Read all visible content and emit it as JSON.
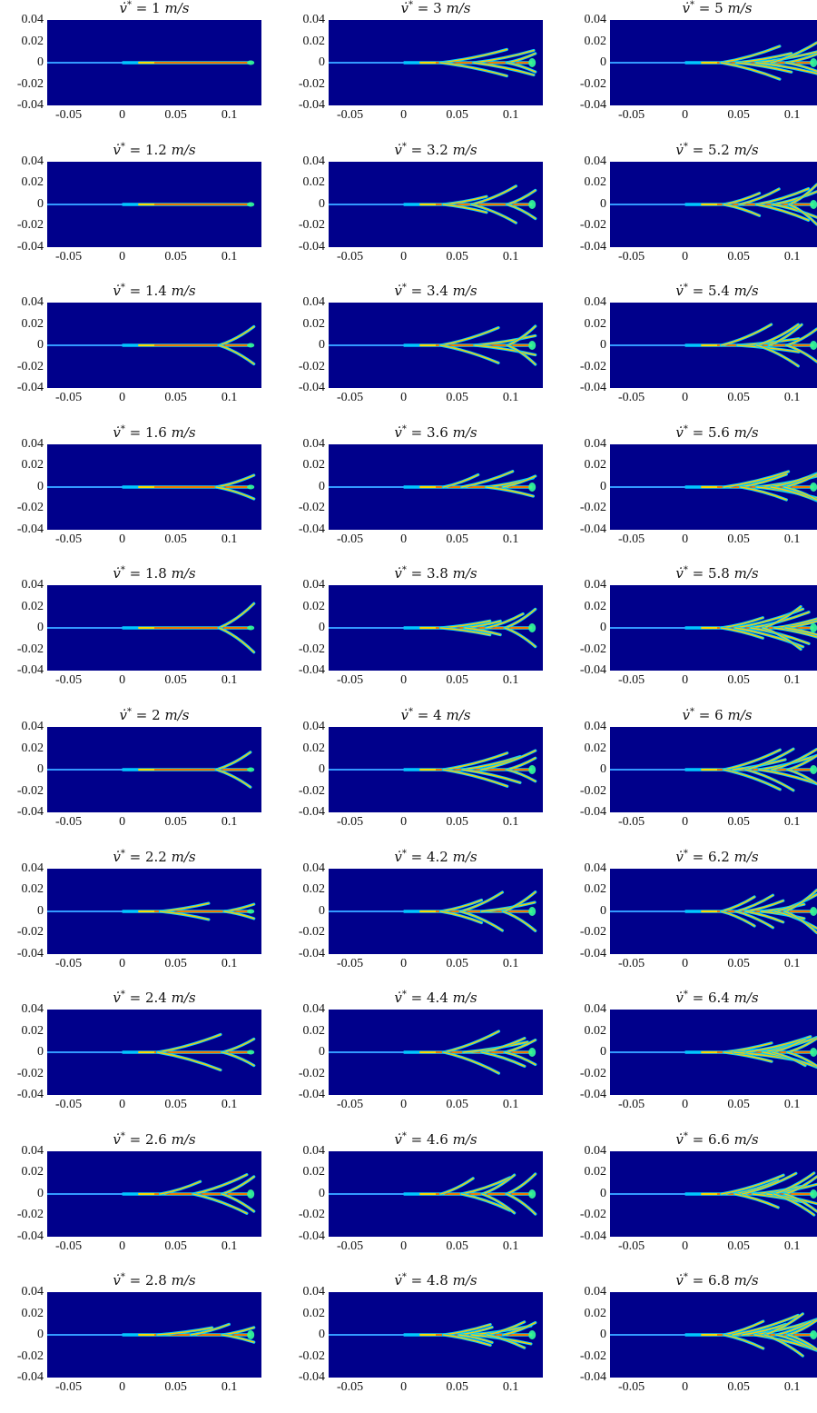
{
  "chart_data": {
    "type": "heatmap",
    "layout": "10 rows x 3 columns small multiples",
    "description_text_units": "m/s",
    "colormap": "jet",
    "background_color": "#00008b",
    "xlim": [
      -0.07,
      0.13
    ],
    "ylim": [
      -0.04,
      0.04
    ],
    "xticks": [
      -0.05,
      0,
      0.05,
      0.1
    ],
    "xtick_labels": [
      "-0.05",
      "0",
      "0.05",
      "0.1"
    ],
    "yticks": [
      0.04,
      0.02,
      0,
      -0.02,
      -0.04
    ],
    "ytick_labels": [
      "0.04",
      "0.02",
      "0",
      "-0.02",
      "-0.04"
    ],
    "panels": [
      {
        "velocity": "1",
        "branches": 0
      },
      {
        "velocity": "3",
        "branches": 3
      },
      {
        "velocity": "5",
        "branches": 5
      },
      {
        "velocity": "1.2",
        "branches": 0
      },
      {
        "velocity": "3.2",
        "branches": 3
      },
      {
        "velocity": "5.2",
        "branches": 5
      },
      {
        "velocity": "1.4",
        "branches": 1
      },
      {
        "velocity": "3.4",
        "branches": 3
      },
      {
        "velocity": "5.4",
        "branches": 5
      },
      {
        "velocity": "1.6",
        "branches": 1
      },
      {
        "velocity": "3.6",
        "branches": 4
      },
      {
        "velocity": "5.6",
        "branches": 5
      },
      {
        "velocity": "1.8",
        "branches": 1
      },
      {
        "velocity": "3.8",
        "branches": 4
      },
      {
        "velocity": "5.8",
        "branches": 6
      },
      {
        "velocity": "2",
        "branches": 1
      },
      {
        "velocity": "4",
        "branches": 4
      },
      {
        "velocity": "6",
        "branches": 6
      },
      {
        "velocity": "2.2",
        "branches": 2
      },
      {
        "velocity": "4.2",
        "branches": 4
      },
      {
        "velocity": "6.2",
        "branches": 6
      },
      {
        "velocity": "2.4",
        "branches": 2
      },
      {
        "velocity": "4.4",
        "branches": 4
      },
      {
        "velocity": "6.4",
        "branches": 6
      },
      {
        "velocity": "2.6",
        "branches": 3
      },
      {
        "velocity": "4.6",
        "branches": 4
      },
      {
        "velocity": "6.6",
        "branches": 7
      },
      {
        "velocity": "2.8",
        "branches": 3
      },
      {
        "velocity": "4.8",
        "branches": 5
      },
      {
        "velocity": "6.8",
        "branches": 7
      }
    ]
  }
}
